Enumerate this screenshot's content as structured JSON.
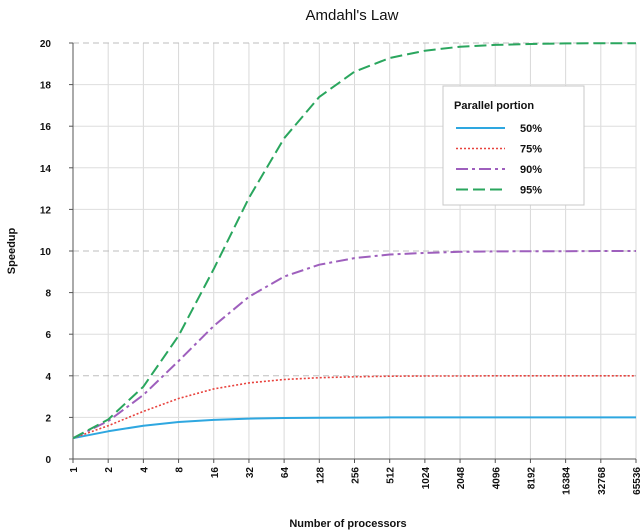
{
  "chart_data": {
    "type": "line",
    "title": "Amdahl's Law",
    "xlabel": "Number of processors",
    "ylabel": "Speedup",
    "x_scale": "log2",
    "x": [
      1,
      2,
      4,
      8,
      16,
      32,
      64,
      128,
      256,
      512,
      1024,
      2048,
      4096,
      8192,
      16384,
      32768,
      65536
    ],
    "x_tick_labels": [
      "1",
      "2",
      "4",
      "8",
      "16",
      "32",
      "64",
      "128",
      "256",
      "512",
      "1024",
      "2048",
      "4096",
      "8192",
      "16384",
      "32768",
      "65536"
    ],
    "ylim": [
      0,
      20
    ],
    "y_ticks": [
      0,
      2,
      4,
      6,
      8,
      10,
      12,
      14,
      16,
      18,
      20
    ],
    "grid": true,
    "legend": {
      "title": "Parallel portion",
      "placement": "top-right"
    },
    "series": [
      {
        "name": "50%",
        "color": "#2ea7e0",
        "style": "solid",
        "values": [
          1.0,
          1.33,
          1.6,
          1.78,
          1.88,
          1.94,
          1.97,
          1.98,
          1.99,
          2.0,
          2.0,
          2.0,
          2.0,
          2.0,
          2.0,
          2.0,
          2.0
        ]
      },
      {
        "name": "75%",
        "color": "#e8423d",
        "style": "dotted",
        "values": [
          1.0,
          1.6,
          2.29,
          2.91,
          3.37,
          3.66,
          3.82,
          3.91,
          3.95,
          3.98,
          3.99,
          3.99,
          4.0,
          4.0,
          4.0,
          4.0,
          4.0
        ]
      },
      {
        "name": "90%",
        "color": "#9e5fbd",
        "style": "dash-dot",
        "values": [
          1.0,
          1.82,
          3.08,
          4.71,
          6.4,
          7.8,
          8.77,
          9.34,
          9.66,
          9.83,
          9.91,
          9.96,
          9.98,
          9.99,
          9.99,
          10.0,
          10.0
        ]
      },
      {
        "name": "95%",
        "color": "#2aa65e",
        "style": "dashed",
        "values": [
          1.0,
          1.9,
          3.48,
          5.93,
          9.14,
          12.55,
          15.42,
          17.41,
          18.62,
          19.28,
          19.63,
          19.82,
          19.91,
          19.95,
          19.98,
          19.99,
          19.99
        ]
      }
    ]
  }
}
